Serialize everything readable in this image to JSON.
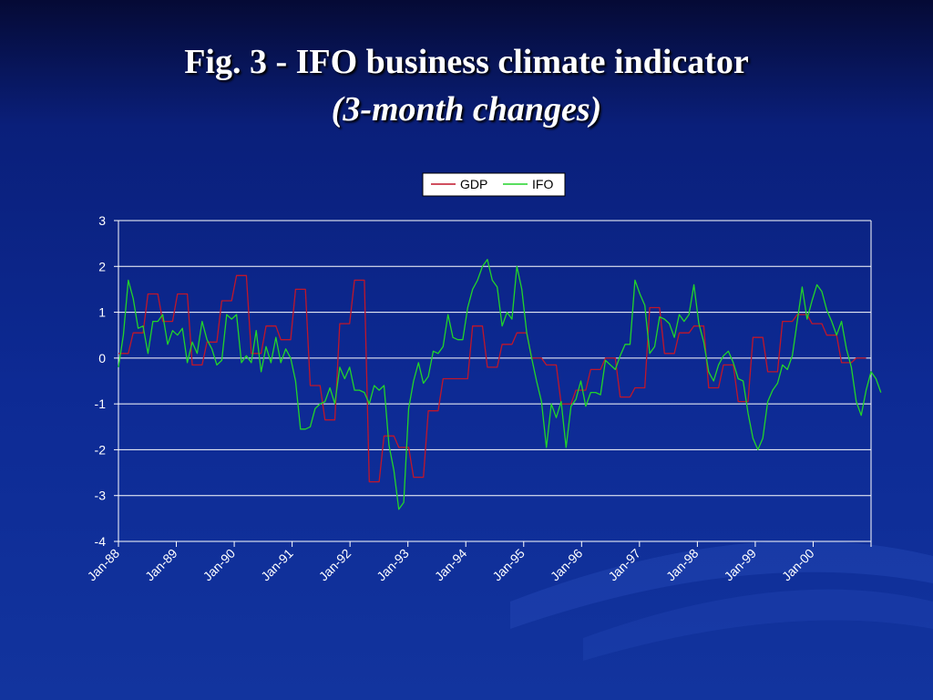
{
  "slide": {
    "title_line1": "Fig. 3 - IFO business climate indicator",
    "title_line2": "(3-month changes)"
  },
  "colors": {
    "background_top": "#050a35",
    "background_bottom": "#12349e",
    "gdp": "#c0162a",
    "ifo": "#22d42a",
    "gridline": "#ffffff"
  },
  "chart_data": {
    "type": "line",
    "title": "",
    "xlabel": "",
    "ylabel": "",
    "ylim": [
      -4,
      3
    ],
    "yticks": [
      -4,
      -3,
      -2,
      -1,
      0,
      1,
      2,
      3
    ],
    "grid": true,
    "legend_position": "top-center",
    "x_tick_labels": [
      "Jan-88",
      "Jan-89",
      "Jan-90",
      "Jan-91",
      "Jan-92",
      "Jan-93",
      "Jan-94",
      "Jan-95",
      "Jan-96",
      "Jan-97",
      "Jan-98",
      "Jan-99",
      "Jan-00"
    ],
    "x_start": "Jan-88",
    "x_end": "Dec-00",
    "series": [
      {
        "name": "GDP",
        "color": "#c0162a",
        "values": [
          0.1,
          0.1,
          0.1,
          0.55,
          0.55,
          0.55,
          1.4,
          1.4,
          1.4,
          0.8,
          0.8,
          0.8,
          1.4,
          1.4,
          1.4,
          -0.15,
          -0.15,
          -0.15,
          0.35,
          0.35,
          0.35,
          1.25,
          1.25,
          1.25,
          1.8,
          1.8,
          1.8,
          0.1,
          0.1,
          0.1,
          0.7,
          0.7,
          0.7,
          0.4,
          0.4,
          0.4,
          1.5,
          1.5,
          1.5,
          -0.6,
          -0.6,
          -0.6,
          -1.35,
          -1.35,
          -1.35,
          0.75,
          0.75,
          0.75,
          1.7,
          1.7,
          1.7,
          -2.7,
          -2.7,
          -2.7,
          -1.7,
          -1.7,
          -1.7,
          -1.95,
          -1.95,
          -1.95,
          -2.6,
          -2.6,
          -2.6,
          -1.15,
          -1.15,
          -1.15,
          -0.45,
          -0.45,
          -0.45,
          -0.45,
          -0.45,
          -0.45,
          0.7,
          0.7,
          0.7,
          -0.2,
          -0.2,
          -0.2,
          0.3,
          0.3,
          0.3,
          0.55,
          0.55,
          0.55,
          0.0,
          0.0,
          0.0,
          -0.15,
          -0.15,
          -0.15,
          -1.0,
          -1.0,
          -1.0,
          -0.7,
          -0.7,
          -0.7,
          -0.25,
          -0.25,
          -0.25,
          0.0,
          0.0,
          0.0,
          -0.85,
          -0.85,
          -0.85,
          -0.65,
          -0.65,
          -0.65,
          1.1,
          1.1,
          1.1,
          0.1,
          0.1,
          0.1,
          0.55,
          0.55,
          0.55,
          0.7,
          0.7,
          0.7,
          -0.65,
          -0.65,
          -0.65,
          -0.15,
          -0.15,
          -0.15,
          -0.95,
          -0.95,
          -0.95,
          0.45,
          0.45,
          0.45,
          -0.3,
          -0.3,
          -0.3,
          0.8,
          0.8,
          0.8,
          0.95,
          0.95,
          0.95,
          0.75,
          0.75,
          0.75,
          0.5,
          0.5,
          0.5,
          -0.1,
          -0.1,
          -0.1,
          0.0,
          0.0,
          0.0
        ]
      },
      {
        "name": "IFO",
        "color": "#22d42a",
        "values": [
          -0.2,
          0.5,
          1.7,
          1.3,
          0.65,
          0.7,
          0.1,
          0.8,
          0.8,
          0.95,
          0.3,
          0.6,
          0.5,
          0.65,
          -0.1,
          0.35,
          0.1,
          0.8,
          0.4,
          0.2,
          -0.15,
          -0.05,
          0.95,
          0.85,
          0.95,
          -0.1,
          0.05,
          -0.1,
          0.6,
          -0.3,
          0.25,
          -0.1,
          0.45,
          -0.1,
          0.2,
          0.0,
          -0.5,
          -1.55,
          -1.55,
          -1.5,
          -1.1,
          -1.0,
          -0.95,
          -0.65,
          -1.0,
          -0.2,
          -0.45,
          -0.2,
          -0.7,
          -0.7,
          -0.75,
          -1.0,
          -0.6,
          -0.7,
          -0.6,
          -1.9,
          -2.45,
          -3.3,
          -3.15,
          -1.1,
          -0.5,
          -0.1,
          -0.55,
          -0.4,
          0.15,
          0.1,
          0.25,
          0.95,
          0.45,
          0.4,
          0.4,
          1.1,
          1.5,
          1.7,
          2.0,
          2.15,
          1.7,
          1.55,
          0.7,
          1.0,
          0.85,
          2.0,
          1.5,
          0.55,
          0.0,
          -0.5,
          -0.95,
          -1.95,
          -1.0,
          -1.3,
          -0.95,
          -1.95,
          -1.05,
          -0.9,
          -0.5,
          -1.05,
          -0.75,
          -0.75,
          -0.8,
          -0.05,
          -0.15,
          -0.25,
          0.05,
          0.3,
          0.3,
          1.7,
          1.4,
          1.15,
          0.1,
          0.25,
          0.9,
          0.85,
          0.75,
          0.45,
          0.95,
          0.8,
          0.95,
          1.6,
          0.75,
          0.35,
          -0.3,
          -0.5,
          -0.15,
          0.05,
          0.15,
          -0.1,
          -0.45,
          -0.5,
          -1.2,
          -1.75,
          -2.0,
          -1.75,
          -0.95,
          -0.7,
          -0.55,
          -0.15,
          -0.25,
          0.05,
          0.8,
          1.55,
          0.85,
          1.25,
          1.6,
          1.45,
          1.05,
          0.8,
          0.5,
          0.8,
          0.2,
          -0.2,
          -0.95,
          -1.25,
          -0.7,
          -0.3,
          -0.45,
          -0.75
        ]
      }
    ]
  }
}
